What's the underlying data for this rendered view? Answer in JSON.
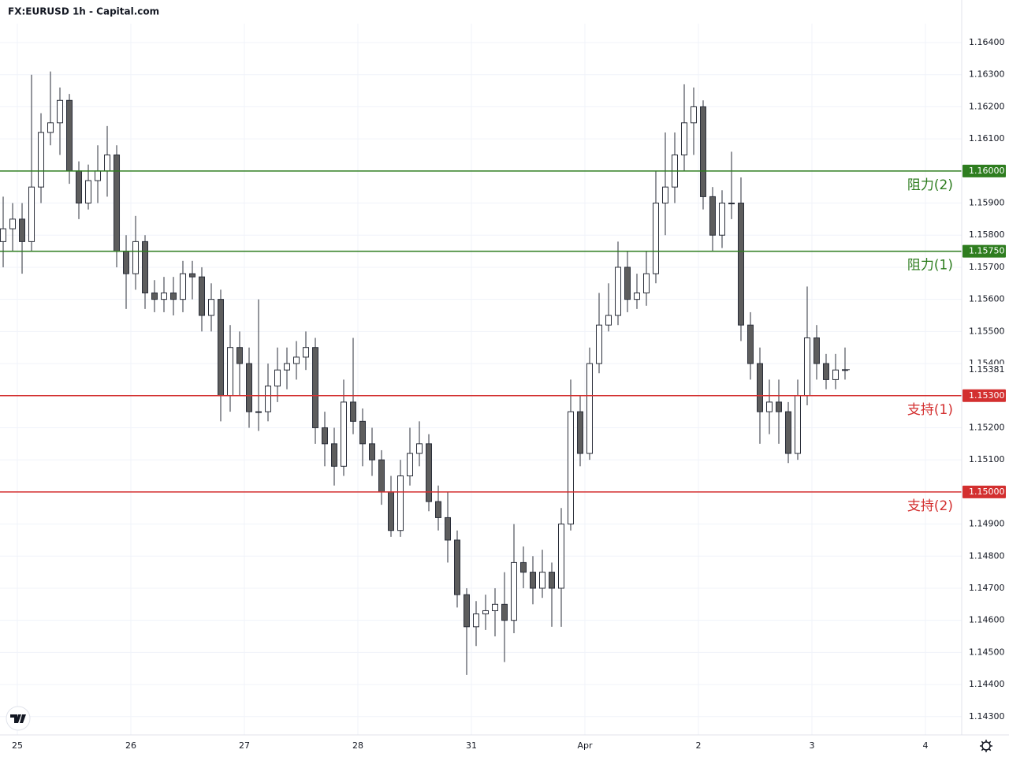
{
  "chart_data": {
    "type": "candlestick",
    "title": "FX:EURUSD 1h - Capital.com",
    "x": [
      -3,
      -1,
      1,
      3,
      5,
      7,
      9,
      11,
      13,
      15,
      17,
      19,
      21,
      23,
      25,
      27,
      29,
      31,
      33,
      35,
      37,
      39,
      41,
      43,
      45,
      47,
      49,
      51,
      53,
      55,
      57,
      59,
      61,
      63,
      65,
      67,
      69,
      71,
      73,
      75,
      77,
      79,
      81,
      83,
      85,
      87,
      89,
      91,
      93,
      95,
      97,
      99,
      101,
      103,
      105,
      107,
      109,
      111,
      113,
      115,
      117,
      119,
      121,
      123,
      125,
      127,
      129,
      131,
      133,
      135,
      137,
      139,
      141,
      143,
      145,
      147,
      149,
      151,
      153,
      155,
      157,
      159,
      161,
      163,
      165,
      167,
      169,
      171,
      173,
      175
    ],
    "open": [
      1.1578,
      1.1582,
      1.1585,
      1.1578,
      1.1595,
      1.1612,
      1.1615,
      1.1622,
      1.16,
      1.159,
      1.1597,
      1.16,
      1.1605,
      1.1575,
      1.1568,
      1.1578,
      1.1562,
      1.156,
      1.1562,
      1.156,
      1.1568,
      1.1567,
      1.1555,
      1.156,
      1.153,
      1.1545,
      1.154,
      1.1525,
      1.1525,
      1.1533,
      1.1538,
      1.154,
      1.1542,
      1.1545,
      1.152,
      1.1515,
      1.1508,
      1.1528,
      1.1522,
      1.1515,
      1.151,
      1.15,
      1.1488,
      1.1505,
      1.1512,
      1.1515,
      1.1497,
      1.1492,
      1.1485,
      1.1468,
      1.1458,
      1.1462,
      1.1463,
      1.1465,
      1.146,
      1.1478,
      1.1475,
      1.147,
      1.1475,
      1.147,
      1.149,
      1.1525,
      1.1512,
      1.154,
      1.1552,
      1.1555,
      1.157,
      1.156,
      1.1562,
      1.1568,
      1.159,
      1.1595,
      1.1605,
      1.1615,
      1.162,
      1.1592,
      1.158,
      1.159,
      1.159,
      1.1552,
      1.154,
      1.1525,
      1.1528,
      1.1525,
      1.1512,
      1.153,
      1.1548,
      1.154,
      1.1535,
      1.1538
    ],
    "high": [
      1.1592,
      1.159,
      1.159,
      1.163,
      1.1618,
      1.1631,
      1.1626,
      1.1624,
      1.1603,
      1.1602,
      1.1608,
      1.1614,
      1.1608,
      1.158,
      1.1586,
      1.158,
      1.1566,
      1.1567,
      1.1567,
      1.1572,
      1.1572,
      1.157,
      1.1565,
      1.1563,
      1.1552,
      1.155,
      1.1545,
      1.156,
      1.154,
      1.1545,
      1.1545,
      1.1547,
      1.155,
      1.1548,
      1.1525,
      1.152,
      1.1535,
      1.1548,
      1.1526,
      1.152,
      1.1513,
      1.1505,
      1.151,
      1.152,
      1.1522,
      1.1518,
      1.1502,
      1.15,
      1.1488,
      1.147,
      1.1466,
      1.1468,
      1.147,
      1.1475,
      1.149,
      1.1483,
      1.148,
      1.1482,
      1.1478,
      1.1495,
      1.1535,
      1.153,
      1.1545,
      1.1562,
      1.1565,
      1.1578,
      1.1575,
      1.1568,
      1.1575,
      1.16,
      1.1612,
      1.1612,
      1.1627,
      1.1626,
      1.1622,
      1.1595,
      1.1594,
      1.1606,
      1.1598,
      1.1556,
      1.1545,
      1.1535,
      1.1535,
      1.1528,
      1.1535,
      1.1564,
      1.1552,
      1.1543,
      1.1543,
      1.1545
    ],
    "low": [
      1.157,
      1.1575,
      1.1568,
      1.1575,
      1.159,
      1.1608,
      1.1605,
      1.1596,
      1.1585,
      1.1588,
      1.159,
      1.1592,
      1.157,
      1.1557,
      1.1563,
      1.1557,
      1.1556,
      1.1556,
      1.1555,
      1.1556,
      1.156,
      1.155,
      1.155,
      1.1522,
      1.1525,
      1.153,
      1.152,
      1.1519,
      1.1522,
      1.1528,
      1.1532,
      1.1535,
      1.1538,
      1.1515,
      1.1508,
      1.1502,
      1.1505,
      1.1518,
      1.1508,
      1.1505,
      1.1496,
      1.1486,
      1.1486,
      1.1502,
      1.1508,
      1.1494,
      1.1488,
      1.1478,
      1.1464,
      1.1443,
      1.1452,
      1.1457,
      1.1455,
      1.1447,
      1.1456,
      1.147,
      1.1465,
      1.1467,
      1.1458,
      1.1458,
      1.1488,
      1.1508,
      1.151,
      1.1537,
      1.155,
      1.1552,
      1.1556,
      1.1557,
      1.1558,
      1.1565,
      1.158,
      1.159,
      1.16,
      1.1605,
      1.1588,
      1.1575,
      1.1576,
      1.1585,
      1.1547,
      1.1535,
      1.1515,
      1.1518,
      1.1515,
      1.1509,
      1.151,
      1.1527,
      1.1535,
      1.1532,
      1.1532,
      1.1535
    ],
    "close": [
      1.1582,
      1.1585,
      1.1578,
      1.1595,
      1.1612,
      1.1615,
      1.1622,
      1.16,
      1.159,
      1.1597,
      1.16,
      1.1605,
      1.1575,
      1.1568,
      1.1578,
      1.1562,
      1.156,
      1.1562,
      1.156,
      1.1568,
      1.1567,
      1.1555,
      1.156,
      1.153,
      1.1545,
      1.154,
      1.1525,
      1.1525,
      1.1533,
      1.1538,
      1.154,
      1.1542,
      1.1545,
      1.152,
      1.1515,
      1.1508,
      1.1528,
      1.1522,
      1.1515,
      1.151,
      1.15,
      1.1488,
      1.1505,
      1.1512,
      1.1515,
      1.1497,
      1.1492,
      1.1485,
      1.1468,
      1.1458,
      1.1462,
      1.1463,
      1.1465,
      1.146,
      1.1478,
      1.1475,
      1.147,
      1.1475,
      1.147,
      1.149,
      1.1525,
      1.1512,
      1.154,
      1.1552,
      1.1555,
      1.157,
      1.156,
      1.1562,
      1.1568,
      1.159,
      1.1595,
      1.1605,
      1.1615,
      1.162,
      1.1592,
      1.158,
      1.159,
      1.159,
      1.1552,
      1.154,
      1.1525,
      1.1528,
      1.1525,
      1.1512,
      1.153,
      1.1548,
      1.154,
      1.1535,
      1.1538,
      1.15381
    ],
    "up_color": "#ffffff",
    "down_color": "#5d5d5d",
    "outline_color": "#2a2e39",
    "xlim": [
      -3.67,
      199.67
    ],
    "xticks": [
      {
        "value": 0,
        "label": "25"
      },
      {
        "value": 24,
        "label": "26"
      },
      {
        "value": 48,
        "label": "27"
      },
      {
        "value": 72,
        "label": "28"
      },
      {
        "value": 96,
        "label": "31"
      },
      {
        "value": 120,
        "label": "Apr"
      },
      {
        "value": 144,
        "label": "2"
      },
      {
        "value": 168,
        "label": "3"
      },
      {
        "value": 192,
        "label": "4"
      }
    ],
    "ylim": [
      1.14243,
      1.16459
    ],
    "yticks": [
      {
        "value": 1.164,
        "label": "1.16400"
      },
      {
        "value": 1.163,
        "label": "1.16300"
      },
      {
        "value": 1.162,
        "label": "1.16200"
      },
      {
        "value": 1.161,
        "label": "1.16100"
      },
      {
        "value": 1.16,
        "label": "1.16000"
      },
      {
        "value": 1.159,
        "label": "1.15900"
      },
      {
        "value": 1.158,
        "label": "1.15800"
      },
      {
        "value": 1.157,
        "label": "1.15700"
      },
      {
        "value": 1.156,
        "label": "1.15600"
      },
      {
        "value": 1.155,
        "label": "1.15500"
      },
      {
        "value": 1.154,
        "label": "1.15400"
      },
      {
        "value": 1.153,
        "label": "1.15300"
      },
      {
        "value": 1.152,
        "label": "1.15200"
      },
      {
        "value": 1.151,
        "label": "1.15100"
      },
      {
        "value": 1.15,
        "label": "1.15000"
      },
      {
        "value": 1.149,
        "label": "1.14900"
      },
      {
        "value": 1.148,
        "label": "1.14800"
      },
      {
        "value": 1.147,
        "label": "1.14700"
      },
      {
        "value": 1.146,
        "label": "1.14600"
      },
      {
        "value": 1.145,
        "label": "1.14500"
      },
      {
        "value": 1.144,
        "label": "1.14400"
      },
      {
        "value": 1.143,
        "label": "1.14300"
      }
    ],
    "grid": true,
    "levels": [
      {
        "value": 1.16,
        "label": "1.16000",
        "name": "阻力(2)",
        "color": "#2e7d1f"
      },
      {
        "value": 1.1575,
        "label": "1.15750",
        "name": "阻力(1)",
        "color": "#2e7d1f"
      },
      {
        "value": 1.153,
        "label": "1.15300",
        "name": "支持(1)",
        "color": "#d32f2f"
      },
      {
        "value": 1.15,
        "label": "1.15000",
        "name": "支持(2)",
        "color": "#d32f2f"
      }
    ],
    "last_price": {
      "value": 1.15381,
      "label": "1.15381"
    }
  }
}
